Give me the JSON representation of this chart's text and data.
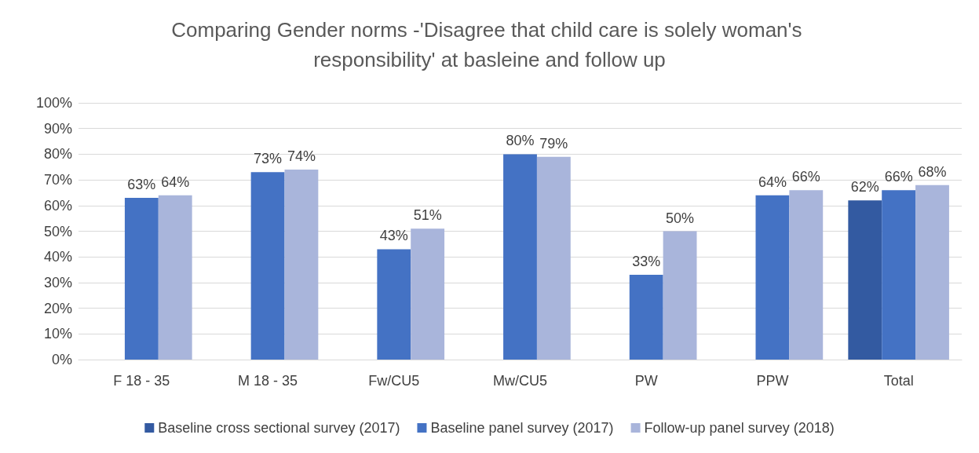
{
  "chart_data": {
    "type": "bar",
    "title": "Comparing Gender norms -'Disagree that child care is solely woman's responsibility' at basleine and follow up",
    "categories": [
      "F 18 - 35",
      "M 18 - 35",
      "Fw/CU5",
      "Mw/CU5",
      "PW",
      "PPW",
      "Total"
    ],
    "series": [
      {
        "name": "Baseline cross sectional survey (2017)",
        "color": "#335aa1",
        "values": [
          null,
          null,
          null,
          null,
          null,
          null,
          62
        ],
        "value_labels": [
          null,
          null,
          null,
          null,
          null,
          null,
          "62%"
        ]
      },
      {
        "name": "Baseline panel survey (2017)",
        "color": "#4472c4",
        "values": [
          63,
          73,
          43,
          80,
          33,
          64,
          66
        ],
        "value_labels": [
          "63%",
          "73%",
          "43%",
          "80%",
          "33%",
          "64%",
          "66%"
        ]
      },
      {
        "name": "Follow-up panel survey (2018)",
        "color": "#a9b5db",
        "values": [
          64,
          74,
          51,
          79,
          50,
          66,
          68
        ],
        "value_labels": [
          "64%",
          "74%",
          "51%",
          "79%",
          "50%",
          "66%",
          "68%"
        ]
      }
    ],
    "ylim": [
      0,
      100
    ],
    "yticks": [
      {
        "value": 0,
        "label": "0%"
      },
      {
        "value": 10,
        "label": "10%"
      },
      {
        "value": 20,
        "label": "20%"
      },
      {
        "value": 30,
        "label": "30%"
      },
      {
        "value": 40,
        "label": "40%"
      },
      {
        "value": 50,
        "label": "50%"
      },
      {
        "value": 60,
        "label": "60%"
      },
      {
        "value": 70,
        "label": "70%"
      },
      {
        "value": 80,
        "label": "80%"
      },
      {
        "value": 90,
        "label": "90%"
      },
      {
        "value": 100,
        "label": "100%"
      }
    ],
    "grid": "y",
    "legend": "bottom"
  }
}
